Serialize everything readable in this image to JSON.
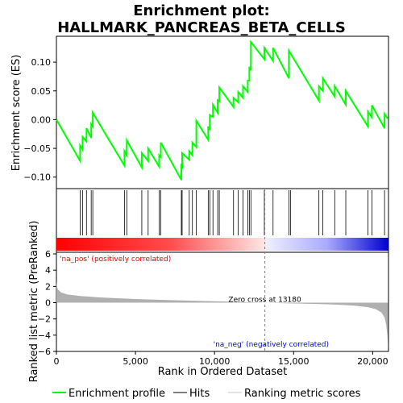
{
  "chart_data": {
    "type": "line",
    "title_line1": "Enrichment plot:",
    "title_line2": "HALLMARK_PANCREAS_BETA_CELLS",
    "es_panel": {
      "ylabel": "Enrichment score (ES)",
      "ylim": [
        -0.12,
        0.145
      ],
      "yticks": [
        -0.1,
        -0.05,
        0.0,
        0.05,
        0.1
      ],
      "ytick_labels": [
        "−0.10",
        "−0.05",
        "0.00",
        "0.05",
        "0.10"
      ],
      "points": [
        [
          0,
          0
        ],
        [
          1500,
          -0.072
        ],
        [
          1500,
          -0.045
        ],
        [
          1650,
          -0.052
        ],
        [
          1650,
          -0.03
        ],
        [
          1900,
          -0.038
        ],
        [
          1900,
          -0.015
        ],
        [
          2200,
          -0.032
        ],
        [
          2200,
          -0.008
        ],
        [
          2300,
          -0.012
        ],
        [
          2300,
          0.012
        ],
        [
          4300,
          -0.08
        ],
        [
          4300,
          -0.055
        ],
        [
          4450,
          -0.062
        ],
        [
          4450,
          -0.036
        ],
        [
          5400,
          -0.083
        ],
        [
          5400,
          -0.058
        ],
        [
          5800,
          -0.072
        ],
        [
          5800,
          -0.05
        ],
        [
          6500,
          -0.082
        ],
        [
          6500,
          -0.062
        ],
        [
          6600,
          -0.065
        ],
        [
          6600,
          -0.04
        ],
        [
          7900,
          -0.105
        ],
        [
          7900,
          -0.08
        ],
        [
          7950,
          -0.082
        ],
        [
          7950,
          -0.058
        ],
        [
          8400,
          -0.07
        ],
        [
          8400,
          -0.055
        ],
        [
          8600,
          -0.062
        ],
        [
          8600,
          -0.04
        ],
        [
          8850,
          -0.048
        ],
        [
          8850,
          -0.002
        ],
        [
          9600,
          -0.035
        ],
        [
          9600,
          -0.012
        ],
        [
          9700,
          -0.018
        ],
        [
          9700,
          0.008
        ],
        [
          9900,
          0.005
        ],
        [
          9900,
          0.026
        ],
        [
          10200,
          0.012
        ],
        [
          10200,
          0.034
        ],
        [
          10300,
          0.032
        ],
        [
          10300,
          0.056
        ],
        [
          11200,
          0.022
        ],
        [
          11200,
          0.038
        ],
        [
          11500,
          0.03
        ],
        [
          11500,
          0.048
        ],
        [
          11800,
          0.038
        ],
        [
          11800,
          0.058
        ],
        [
          12100,
          0.048
        ],
        [
          12100,
          0.068
        ],
        [
          12200,
          0.068
        ],
        [
          12200,
          0.092
        ],
        [
          12300,
          0.086
        ],
        [
          12300,
          0.135
        ],
        [
          13150,
          0.105
        ],
        [
          13150,
          0.125
        ],
        [
          13700,
          0.102
        ],
        [
          13700,
          0.125
        ],
        [
          14700,
          0.072
        ],
        [
          14700,
          0.12
        ],
        [
          16600,
          0.033
        ],
        [
          16600,
          0.058
        ],
        [
          16850,
          0.05
        ],
        [
          16850,
          0.072
        ],
        [
          17600,
          0.04
        ],
        [
          17600,
          0.058
        ],
        [
          18300,
          0.026
        ],
        [
          18300,
          0.05
        ],
        [
          19700,
          -0.012
        ],
        [
          19700,
          0.014
        ],
        [
          19950,
          0.004
        ],
        [
          19950,
          0.025
        ],
        [
          20750,
          -0.015
        ],
        [
          20750,
          0.01
        ],
        [
          20950,
          0.002
        ]
      ]
    },
    "hits": [
      1500,
      1650,
      1900,
      2200,
      2300,
      4300,
      4450,
      5400,
      5800,
      6500,
      6600,
      7900,
      7950,
      8400,
      8600,
      8850,
      9600,
      9700,
      9900,
      10200,
      10300,
      11200,
      11500,
      11800,
      12100,
      12200,
      12300,
      13150,
      13700,
      14700,
      14800,
      16600,
      16850,
      17600,
      18300,
      19700,
      19950,
      20750
    ],
    "rank_panel": {
      "ylabel": "Ranked list metric (PreRanked)",
      "ylim": [
        -6,
        6.2
      ],
      "yticks": [
        -6,
        -4,
        -2,
        0,
        2,
        4,
        6
      ],
      "ytick_labels": [
        "−6",
        "−4",
        "−2",
        "0",
        "2",
        "4",
        "6"
      ],
      "zero_cross": 13180,
      "zero_cross_label": "Zero cross at 13180",
      "pos_label": "'na_pos' (positively correlated)",
      "neg_label": "'na_neg' (negatively correlated)",
      "profile": [
        [
          0,
          2.6
        ],
        [
          30,
          2.0
        ],
        [
          100,
          1.6
        ],
        [
          300,
          1.25
        ],
        [
          700,
          1.0
        ],
        [
          1500,
          0.82
        ],
        [
          3000,
          0.62
        ],
        [
          5000,
          0.45
        ],
        [
          7000,
          0.33
        ],
        [
          9000,
          0.22
        ],
        [
          11000,
          0.12
        ],
        [
          12500,
          0.04
        ],
        [
          13180,
          0.0
        ],
        [
          14500,
          -0.07
        ],
        [
          16000,
          -0.14
        ],
        [
          17500,
          -0.23
        ],
        [
          18800,
          -0.36
        ],
        [
          19700,
          -0.55
        ],
        [
          20200,
          -0.8
        ],
        [
          20550,
          -1.2
        ],
        [
          20750,
          -1.8
        ],
        [
          20850,
          -2.7
        ],
        [
          20930,
          -4.0
        ],
        [
          20980,
          -5.5
        ]
      ]
    },
    "xlabel": "Rank in Ordered Dataset",
    "xlim": [
      0,
      21000
    ],
    "xticks": [
      0,
      5000,
      10000,
      15000,
      20000
    ],
    "xtick_labels": [
      "0",
      "5,000",
      "10,000",
      "15,000",
      "20,000"
    ],
    "legend": [
      {
        "label": "Enrichment profile",
        "color": "#00ff00"
      },
      {
        "label": "Hits",
        "color": "#000000"
      },
      {
        "label": "Ranking metric scores",
        "color": "#c8c8c8"
      }
    ],
    "colors": {
      "es_line": "#00ff00",
      "pos_color": "#ff0000",
      "neg_color": "#0000ff",
      "zero_line": "#808080",
      "bar_fill": "#b0b0b0",
      "pos_text": "#ff0000",
      "neg_text": "#0000ff"
    }
  }
}
